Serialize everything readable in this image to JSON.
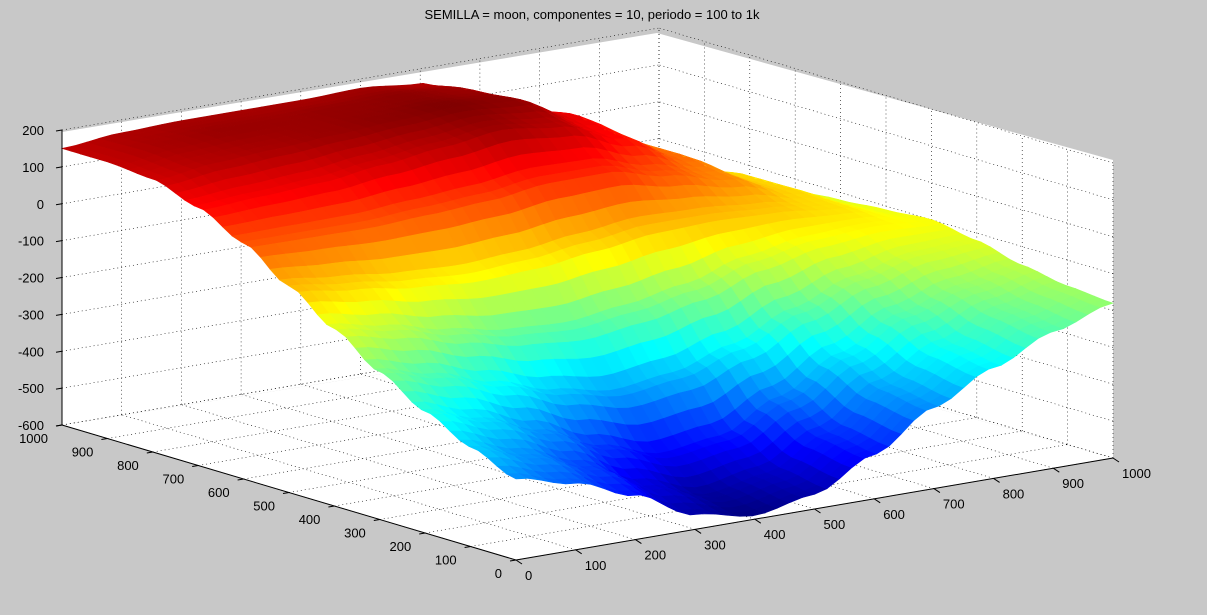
{
  "chart_data": {
    "type": "surface",
    "title": "SEMILLA = moon, componentes = 10, periodo = 100 to 1k",
    "xlabel": "",
    "ylabel": "",
    "zlabel": "",
    "xlim": [
      0,
      1000
    ],
    "ylim": [
      0,
      1000
    ],
    "zlim": [
      -600,
      200
    ],
    "x_ticks": [
      0,
      100,
      200,
      300,
      400,
      500,
      600,
      700,
      800,
      900,
      1000
    ],
    "y_ticks": [
      0,
      100,
      200,
      300,
      400,
      500,
      600,
      700,
      800,
      900,
      1000
    ],
    "z_ticks": [
      200,
      100,
      0,
      -100,
      -200,
      -300,
      -400,
      -500,
      -600
    ],
    "grid": true,
    "colormap": "jet",
    "surface_samples": {
      "x": [
        0,
        100,
        200,
        300,
        400,
        500,
        600,
        700,
        800,
        900,
        1000
      ],
      "y": [
        0,
        100,
        200,
        300,
        400,
        500,
        600,
        700,
        800,
        900,
        1000
      ],
      "z": [
        [
          -380,
          -420,
          -480,
          -560,
          -590,
          -560,
          -480,
          -380,
          -300,
          -230,
          -180
        ],
        [
          -330,
          -380,
          -440,
          -520,
          -570,
          -540,
          -460,
          -360,
          -280,
          -210,
          -170
        ],
        [
          -270,
          -320,
          -380,
          -450,
          -500,
          -480,
          -400,
          -310,
          -230,
          -180,
          -150
        ],
        [
          -200,
          -240,
          -290,
          -340,
          -370,
          -350,
          -300,
          -230,
          -170,
          -130,
          -120
        ],
        [
          -120,
          -150,
          -190,
          -220,
          -230,
          -210,
          -180,
          -130,
          -100,
          -90,
          -100
        ],
        [
          -40,
          -60,
          -80,
          -90,
          -80,
          -60,
          -40,
          -40,
          -50,
          -70,
          -110
        ],
        [
          40,
          40,
          40,
          50,
          60,
          80,
          80,
          40,
          0,
          -60,
          -120
        ],
        [
          100,
          110,
          120,
          140,
          160,
          180,
          160,
          100,
          20,
          -60,
          -130
        ],
        [
          140,
          160,
          170,
          180,
          190,
          200,
          190,
          120,
          20,
          -80,
          -150
        ],
        [
          150,
          170,
          180,
          180,
          185,
          190,
          180,
          100,
          0,
          -100,
          -170
        ],
        [
          150,
          165,
          170,
          170,
          170,
          175,
          160,
          80,
          -20,
          -120,
          -180
        ]
      ]
    }
  }
}
